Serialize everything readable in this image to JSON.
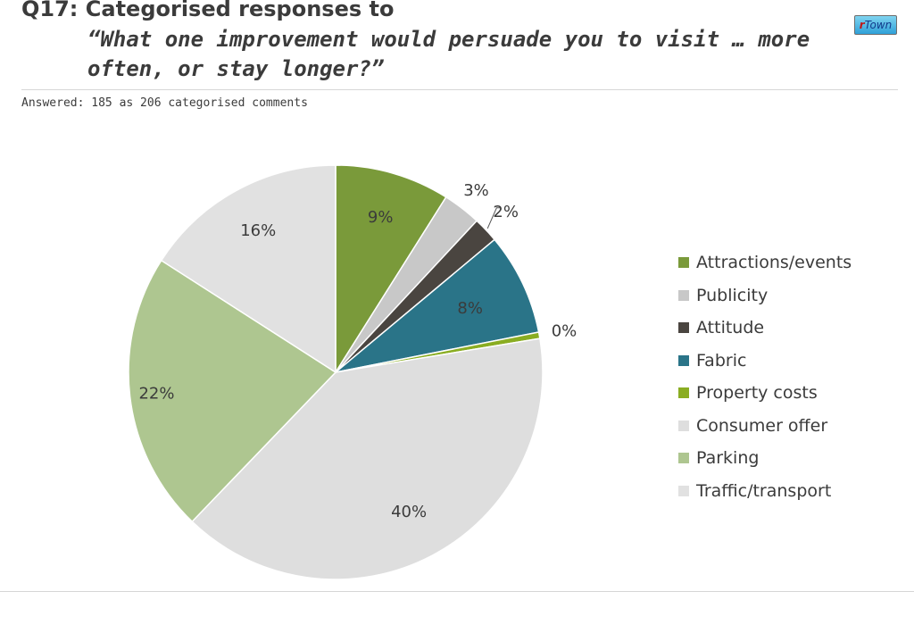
{
  "header": {
    "question_number": "Q17: Categorised responses to",
    "question_text": "“What one improvement would persuade you to visit … more often, or stay longer?”",
    "logo_prefix": "r",
    "logo_suffix": "Town",
    "answered": "Answered: 185 as 206 categorised comments"
  },
  "chart_data": {
    "type": "pie",
    "title": "",
    "legend_position": "right",
    "slices": [
      {
        "name": "Attractions/events",
        "value": 9,
        "label": "9%",
        "color": "#7a9a3a"
      },
      {
        "name": "Publicity",
        "value": 3,
        "label": "3%",
        "color": "#c8c8c8"
      },
      {
        "name": "Attitude",
        "value": 2,
        "label": "2%",
        "color": "#4a4540"
      },
      {
        "name": "Fabric",
        "value": 8,
        "label": "8%",
        "color": "#2a7488"
      },
      {
        "name": "Property costs",
        "value": 0.5,
        "label": "0%",
        "color": "#8aad22"
      },
      {
        "name": "Consumer offer",
        "value": 40,
        "label": "40%",
        "color": "#dedede"
      },
      {
        "name": "Parking",
        "value": 22,
        "label": "22%",
        "color": "#aec690"
      },
      {
        "name": "Traffic/transport",
        "value": 16,
        "label": "16%",
        "color": "#e1e1e1"
      }
    ]
  }
}
